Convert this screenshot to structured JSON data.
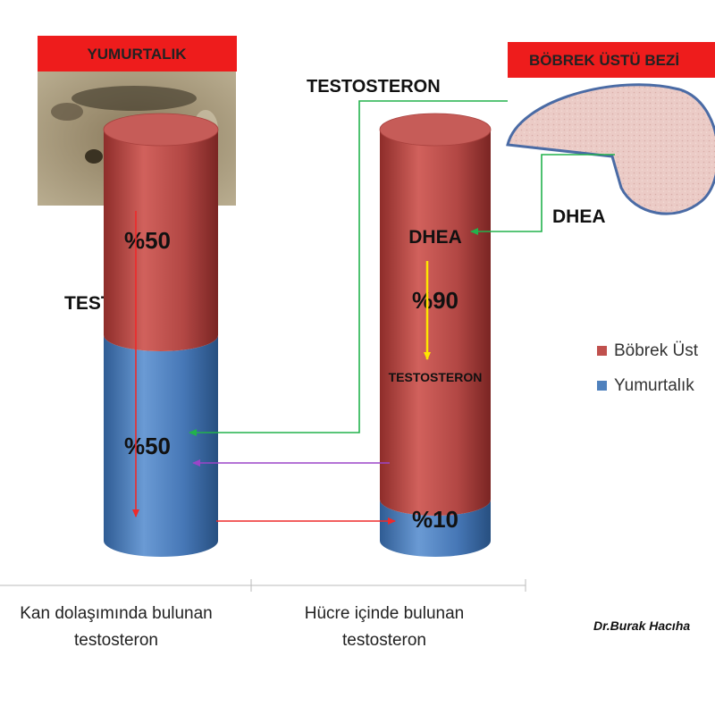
{
  "chart_data": {
    "type": "bar",
    "stacked": true,
    "three_d": true,
    "categories": [
      "Kan dolaşımında bulunan testosteron",
      "Hücre içinde bulunan testosteron"
    ],
    "category_lines": [
      [
        "Kan dolaşımında bulunan",
        "testosteron"
      ],
      [
        "Hücre içinde bulunan",
        "testosteron"
      ]
    ],
    "series": [
      {
        "name": "Yumurtalık",
        "values": [
          50,
          10
        ],
        "color": "#4f81bd",
        "labels": [
          "%50",
          "%10"
        ]
      },
      {
        "name": "Böbrek Üstü",
        "values": [
          50,
          90
        ],
        "color": "#c0504d",
        "labels": [
          "%50",
          "%90"
        ]
      }
    ],
    "legend": {
      "placement": "right",
      "entries": [
        {
          "name": "Böbrek Üst",
          "color": "#c0504d"
        },
        {
          "name": "Yumurtalık",
          "color": "#4f81bd"
        }
      ]
    },
    "ylim": [
      0,
      100
    ]
  },
  "annotations": {
    "ovary_banner": "YUMURTALIK",
    "adrenal_banner": "BÖBREK ÜSTÜ BEZİ",
    "testosterone_top": "TESTOSTERON",
    "testosterone_left": "TESTOSTERON",
    "dhea_outside": "DHEA",
    "dhea_inside": "DHEA",
    "testosterone_inside": "TESTOSTERON",
    "author": "Dr.Burak Hacıha"
  },
  "colors": {
    "banner_red": "#ee1c1c",
    "arrow_green": "#22b24c",
    "arrow_red": "#ee2a2a",
    "arrow_purple": "#9b45c8",
    "arrow_yellow": "#ffe600",
    "adrenal_fill": "#e9c9c4",
    "adrenal_stroke": "#4a6ba5"
  }
}
